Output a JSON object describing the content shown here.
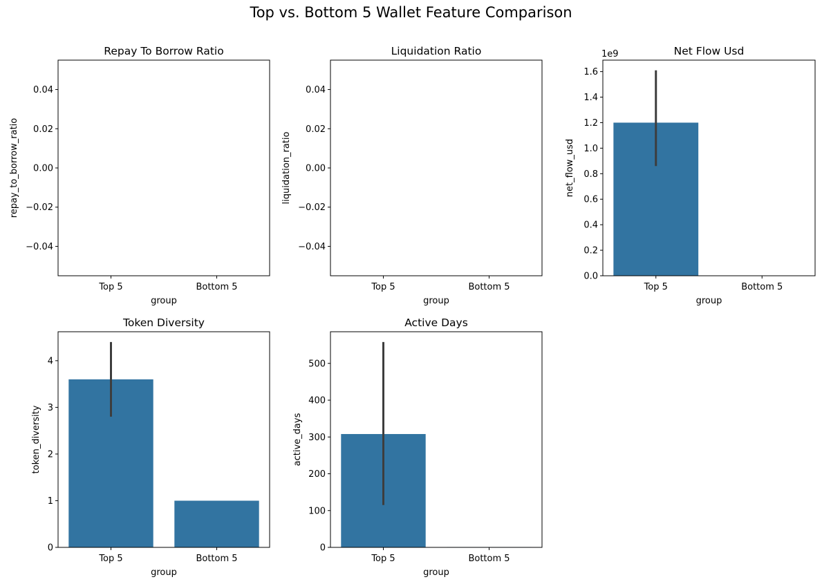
{
  "figure": {
    "title": "Top vs. Bottom 5 Wallet Feature Comparison",
    "bar_color": "#3274a1",
    "errorbar_color": "#3d3d3d"
  },
  "chart_data": [
    {
      "type": "bar",
      "title": "Repay To Borrow Ratio",
      "xlabel": "group",
      "ylabel": "repay_to_borrow_ratio",
      "categories": [
        "Top 5",
        "Bottom 5"
      ],
      "values": [
        0,
        0
      ],
      "errors": [
        null,
        null
      ],
      "ylim": [
        -0.055,
        0.055
      ],
      "yticks": [
        -0.04,
        -0.02,
        0.0,
        0.02,
        0.04
      ],
      "ytick_labels": [
        "−0.04",
        "−0.02",
        "0.00",
        "0.02",
        "0.04"
      ],
      "offset_text": ""
    },
    {
      "type": "bar",
      "title": "Liquidation Ratio",
      "xlabel": "group",
      "ylabel": "liquidation_ratio",
      "categories": [
        "Top 5",
        "Bottom 5"
      ],
      "values": [
        0,
        0
      ],
      "errors": [
        null,
        null
      ],
      "ylim": [
        -0.055,
        0.055
      ],
      "yticks": [
        -0.04,
        -0.02,
        0.0,
        0.02,
        0.04
      ],
      "ytick_labels": [
        "−0.04",
        "−0.02",
        "0.00",
        "0.02",
        "0.04"
      ],
      "offset_text": ""
    },
    {
      "type": "bar",
      "title": "Net Flow Usd",
      "xlabel": "group",
      "ylabel": "net_flow_usd",
      "categories": [
        "Top 5",
        "Bottom 5"
      ],
      "values": [
        1.2,
        0
      ],
      "errors": [
        [
          0.86,
          1.61
        ],
        null
      ],
      "ylim": [
        0,
        1.69
      ],
      "yticks": [
        0.0,
        0.2,
        0.4,
        0.6,
        0.8,
        1.0,
        1.2,
        1.4,
        1.6
      ],
      "ytick_labels": [
        "0.0",
        "0.2",
        "0.4",
        "0.6",
        "0.8",
        "1.0",
        "1.2",
        "1.4",
        "1.6"
      ],
      "offset_text": "1e9"
    },
    {
      "type": "bar",
      "title": "Token Diversity",
      "xlabel": "group",
      "ylabel": "token_diversity",
      "categories": [
        "Top 5",
        "Bottom 5"
      ],
      "values": [
        3.6,
        1.0
      ],
      "errors": [
        [
          2.8,
          4.4
        ],
        null
      ],
      "ylim": [
        0,
        4.62
      ],
      "yticks": [
        0,
        1,
        2,
        3,
        4
      ],
      "ytick_labels": [
        "0",
        "1",
        "2",
        "3",
        "4"
      ],
      "offset_text": ""
    },
    {
      "type": "bar",
      "title": "Active Days",
      "xlabel": "group",
      "ylabel": "active_days",
      "categories": [
        "Top 5",
        "Bottom 5"
      ],
      "values": [
        308,
        1
      ],
      "errors": [
        [
          115,
          558
        ],
        null
      ],
      "ylim": [
        0,
        586
      ],
      "yticks": [
        0,
        100,
        200,
        300,
        400,
        500
      ],
      "ytick_labels": [
        "0",
        "100",
        "200",
        "300",
        "400",
        "500"
      ],
      "offset_text": ""
    }
  ]
}
